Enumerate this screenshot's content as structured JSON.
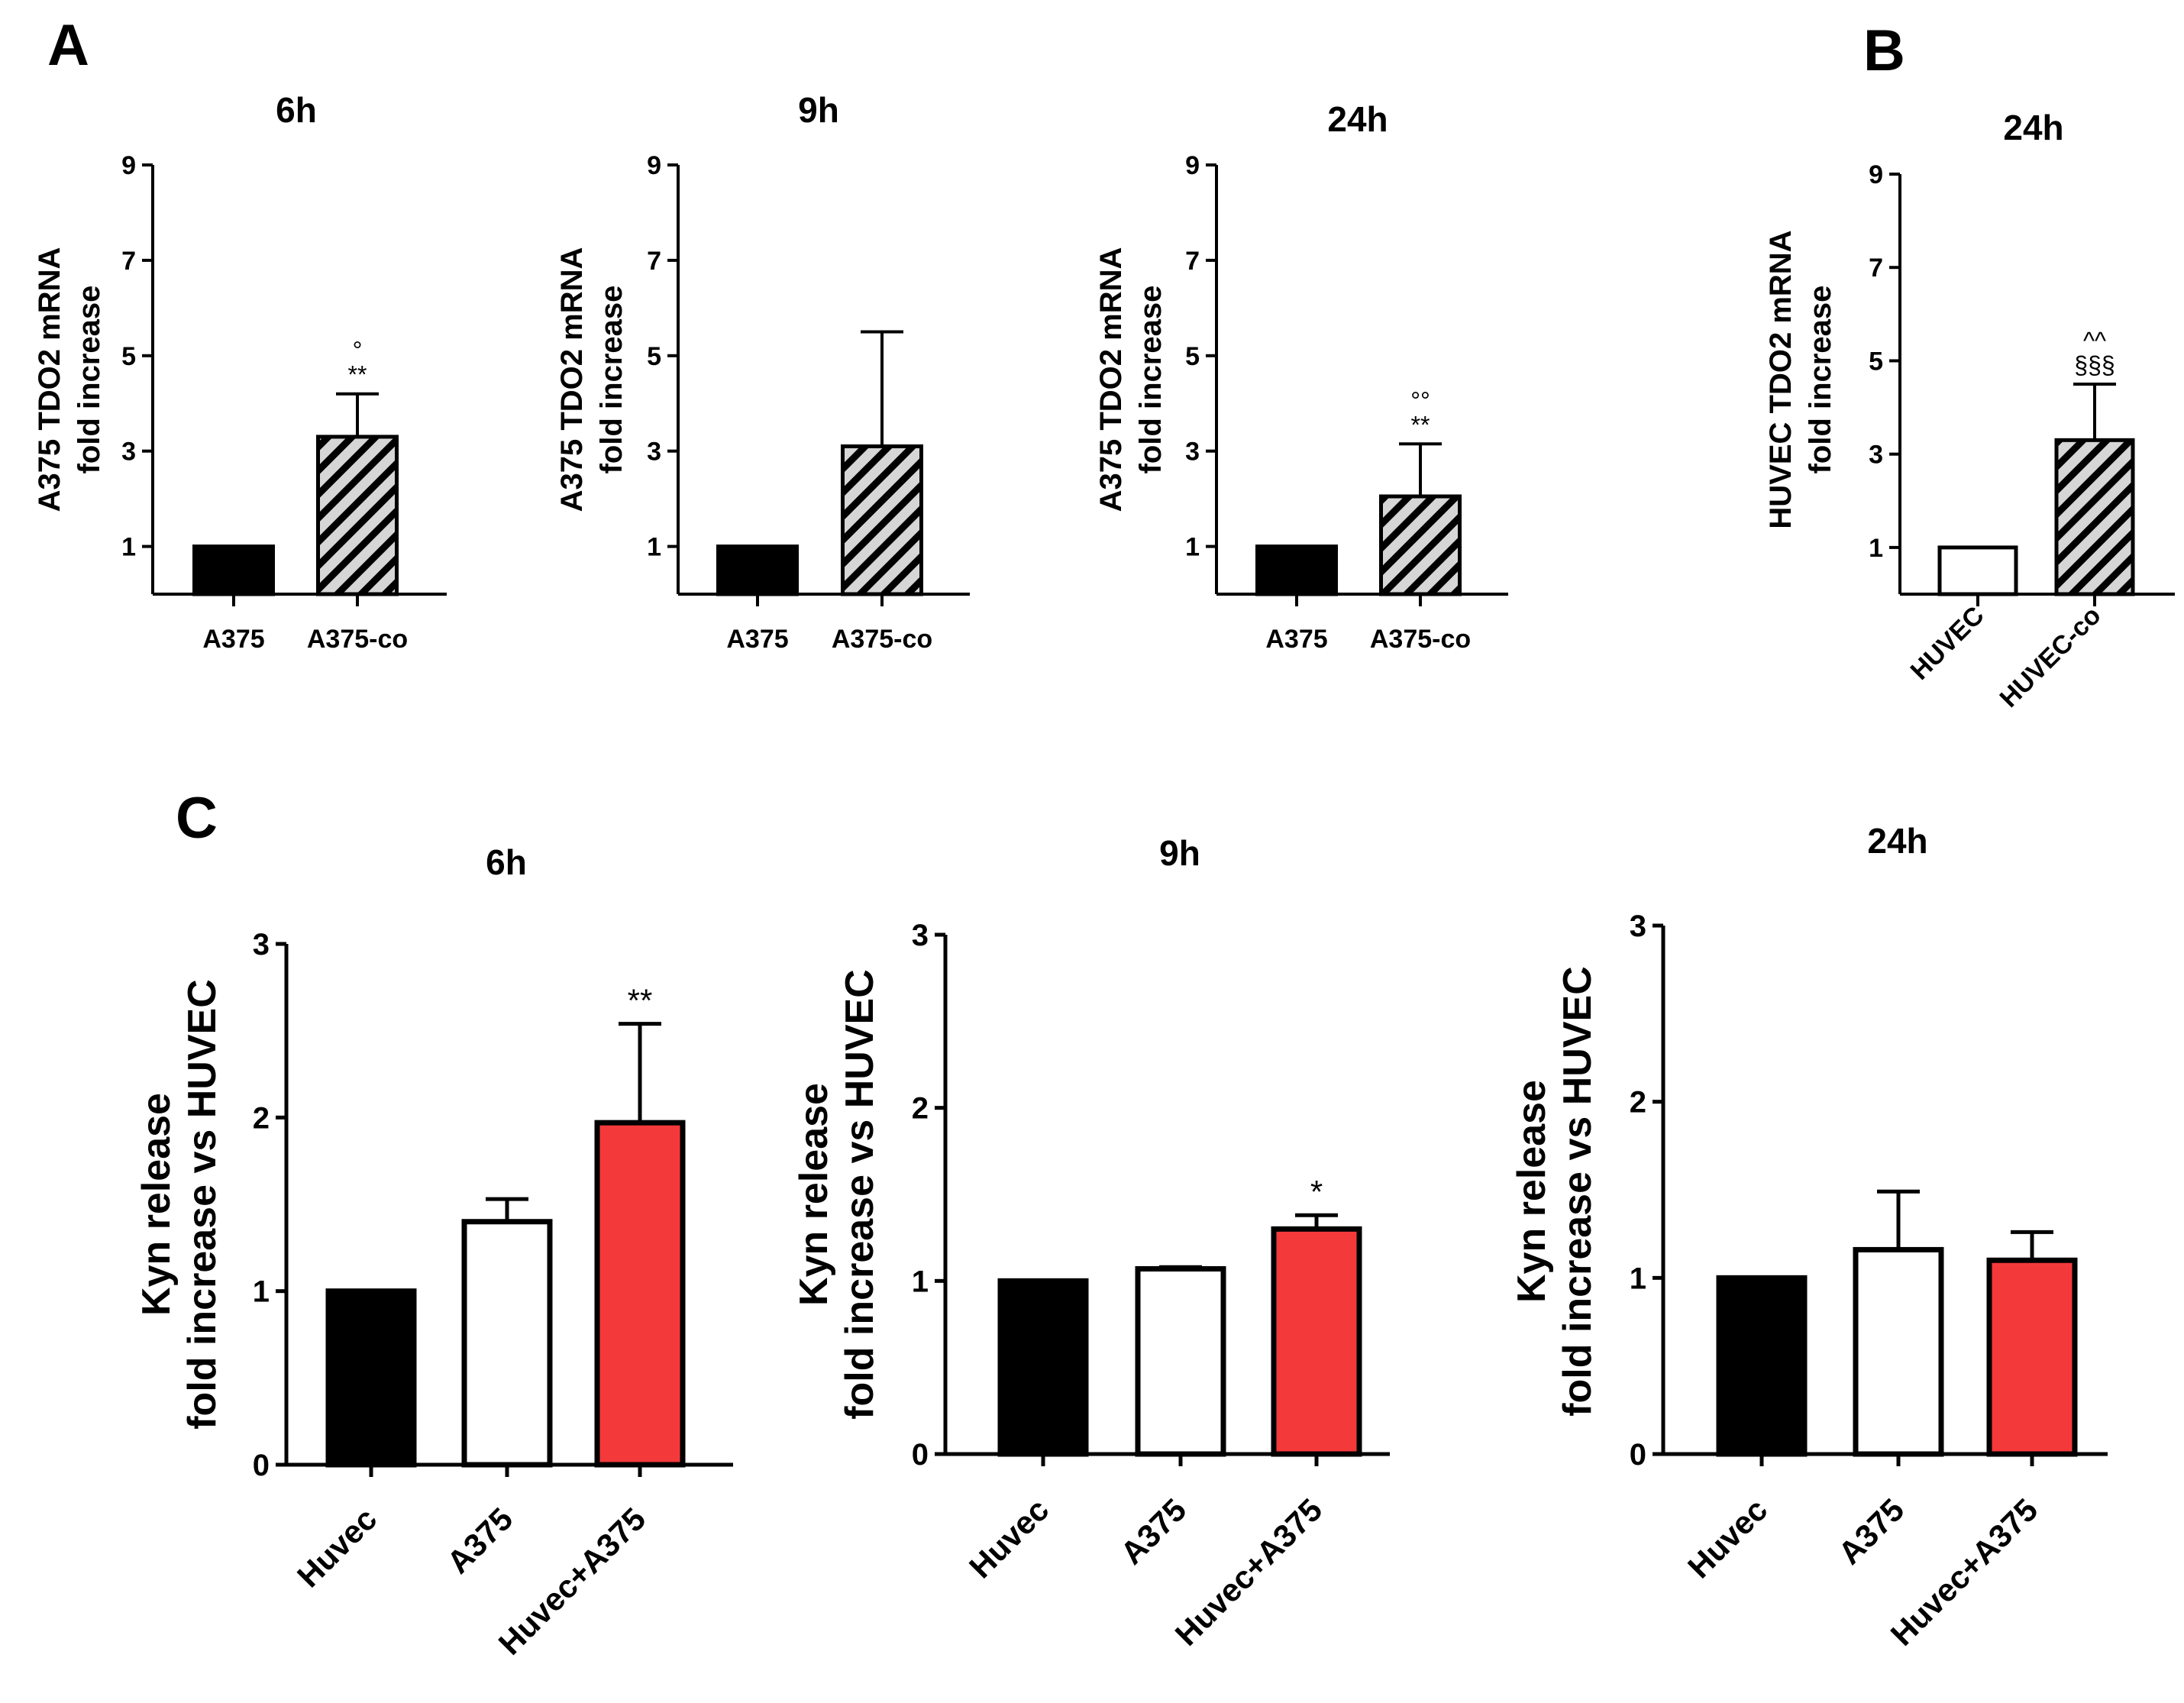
{
  "panel_labels": [
    "A",
    "B",
    "C"
  ],
  "colors": {
    "black": "#000000",
    "white": "#ffffff",
    "hatch_bg": "#d6d6d6",
    "red": "#f4393b"
  },
  "chart_data": [
    {
      "panel": "A",
      "type": "bar",
      "title": "6h",
      "ylabel": [
        "A375 TDO2 mRNA",
        "fold increase"
      ],
      "xlabel": "",
      "ylim": [
        0,
        9
      ],
      "yticks": [
        1,
        3,
        5,
        7,
        9
      ],
      "categories": [
        "A375",
        "A375-co"
      ],
      "values": [
        1.0,
        3.3
      ],
      "errors": [
        0,
        0.9
      ],
      "fills": [
        "black",
        "hatch"
      ],
      "annotations": [
        "",
        "°\n**"
      ]
    },
    {
      "panel": "A",
      "type": "bar",
      "title": "9h",
      "ylabel": [
        "A375 TDO2 mRNA",
        "fold increase"
      ],
      "xlabel": "",
      "ylim": [
        0,
        9
      ],
      "yticks": [
        1,
        3,
        5,
        7,
        9
      ],
      "categories": [
        "A375",
        "A375-co"
      ],
      "values": [
        1.0,
        3.1
      ],
      "errors": [
        0,
        2.4
      ],
      "fills": [
        "black",
        "hatch"
      ],
      "annotations": [
        "",
        ""
      ]
    },
    {
      "panel": "A",
      "type": "bar",
      "title": "24h",
      "ylabel": [
        "A375 TDO2 mRNA",
        "fold increase"
      ],
      "xlabel": "",
      "ylim": [
        0,
        9
      ],
      "yticks": [
        1,
        3,
        5,
        7,
        9
      ],
      "categories": [
        "A375",
        "A375-co"
      ],
      "values": [
        1.0,
        2.05
      ],
      "errors": [
        0,
        1.1
      ],
      "fills": [
        "black",
        "hatch"
      ],
      "annotations": [
        "",
        "°°\n**"
      ]
    },
    {
      "panel": "B",
      "type": "bar",
      "title": "24h",
      "ylabel": [
        "HUVEC TDO2 mRNA",
        "fold increase"
      ],
      "xlabel": "",
      "ylim": [
        0,
        9
      ],
      "yticks": [
        1,
        3,
        5,
        7,
        9
      ],
      "categories": [
        "HUVEC",
        "HUVEC-co"
      ],
      "values": [
        1.0,
        3.3
      ],
      "errors": [
        0,
        1.2
      ],
      "fills": [
        "white",
        "hatch"
      ],
      "annotations": [
        "",
        "^^\n§§§"
      ]
    },
    {
      "panel": "C",
      "type": "bar",
      "title": "6h",
      "ylabel": [
        "Kyn release",
        "fold increase vs HUVEC"
      ],
      "xlabel": "",
      "ylim": [
        0,
        3
      ],
      "yticks": [
        0,
        1,
        2,
        3
      ],
      "categories": [
        "Huvec",
        "A375",
        "Huvec+A375"
      ],
      "values": [
        1.0,
        1.4,
        1.97
      ],
      "errors": [
        0,
        0.13,
        0.57
      ],
      "fills": [
        "black",
        "white",
        "red"
      ],
      "annotations": [
        "",
        "",
        "**"
      ]
    },
    {
      "panel": "C",
      "type": "bar",
      "title": "9h",
      "ylabel": [
        "Kyn release",
        "fold increase vs HUVEC"
      ],
      "xlabel": "",
      "ylim": [
        0,
        3
      ],
      "yticks": [
        0,
        1,
        2,
        3
      ],
      "categories": [
        "Huvec",
        "A375",
        "Huvec+A375"
      ],
      "values": [
        1.0,
        1.07,
        1.3
      ],
      "errors": [
        0,
        0.01,
        0.08
      ],
      "fills": [
        "black",
        "white",
        "red"
      ],
      "annotations": [
        "",
        "",
        "*"
      ]
    },
    {
      "panel": "C",
      "type": "bar",
      "title": "24h",
      "ylabel": [
        "Kyn release",
        "fold increase vs HUVEC"
      ],
      "xlabel": "",
      "ylim": [
        0,
        3
      ],
      "yticks": [
        0,
        1,
        2,
        3
      ],
      "categories": [
        "Huvec",
        "A375",
        "Huvec+A375"
      ],
      "values": [
        1.0,
        1.16,
        1.1
      ],
      "errors": [
        0,
        0.33,
        0.16
      ],
      "fills": [
        "black",
        "white",
        "red"
      ],
      "annotations": [
        "",
        "",
        ""
      ]
    }
  ]
}
